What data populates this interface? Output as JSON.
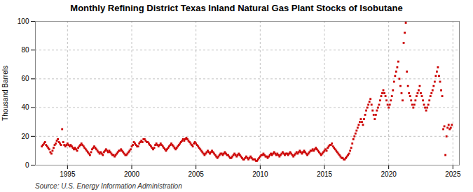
{
  "chart_data": {
    "type": "scatter",
    "title": "Monthly Refining District Texas Inland Natural Gas Plant Stocks of Isobutane",
    "ylabel": "Thousand Barrels",
    "source": "Source: U.S. Energy Information Administration",
    "color": "#cc0000",
    "marker": "square",
    "grid": true,
    "xlim": [
      1992.5,
      2025.5
    ],
    "ylim": [
      0,
      100
    ],
    "xticks": [
      1995,
      2000,
      2005,
      2010,
      2015,
      2020,
      2025
    ],
    "yticks": [
      0,
      20,
      40,
      60,
      80,
      100
    ],
    "x": [
      1993.0,
      1993.083,
      1993.167,
      1993.25,
      1993.333,
      1993.417,
      1993.5,
      1993.583,
      1993.667,
      1993.75,
      1993.833,
      1993.917,
      1994.0,
      1994.083,
      1994.167,
      1994.25,
      1994.333,
      1994.417,
      1994.5,
      1994.583,
      1994.667,
      1994.75,
      1994.833,
      1994.917,
      1995.0,
      1995.083,
      1995.167,
      1995.25,
      1995.333,
      1995.417,
      1995.5,
      1995.583,
      1995.667,
      1995.75,
      1995.833,
      1995.917,
      1996.0,
      1996.083,
      1996.167,
      1996.25,
      1996.333,
      1996.417,
      1996.5,
      1996.583,
      1996.667,
      1996.75,
      1996.833,
      1996.917,
      1997.0,
      1997.083,
      1997.167,
      1997.25,
      1997.333,
      1997.417,
      1997.5,
      1997.583,
      1997.667,
      1997.75,
      1997.833,
      1997.917,
      1998.0,
      1998.083,
      1998.167,
      1998.25,
      1998.333,
      1998.417,
      1998.5,
      1998.583,
      1998.667,
      1998.75,
      1998.833,
      1998.917,
      1999.0,
      1999.083,
      1999.167,
      1999.25,
      1999.333,
      1999.417,
      1999.5,
      1999.583,
      1999.667,
      1999.75,
      1999.833,
      1999.917,
      2000.0,
      2000.083,
      2000.167,
      2000.25,
      2000.333,
      2000.417,
      2000.5,
      2000.583,
      2000.667,
      2000.75,
      2000.833,
      2000.917,
      2001.0,
      2001.083,
      2001.167,
      2001.25,
      2001.333,
      2001.417,
      2001.5,
      2001.583,
      2001.667,
      2001.75,
      2001.833,
      2001.917,
      2002.0,
      2002.083,
      2002.167,
      2002.25,
      2002.333,
      2002.417,
      2002.5,
      2002.583,
      2002.667,
      2002.75,
      2002.833,
      2002.917,
      2003.0,
      2003.083,
      2003.167,
      2003.25,
      2003.333,
      2003.417,
      2003.5,
      2003.583,
      2003.667,
      2003.75,
      2003.833,
      2003.917,
      2004.0,
      2004.083,
      2004.167,
      2004.25,
      2004.333,
      2004.417,
      2004.5,
      2004.583,
      2004.667,
      2004.75,
      2004.833,
      2004.917,
      2005.0,
      2005.083,
      2005.167,
      2005.25,
      2005.333,
      2005.417,
      2005.5,
      2005.583,
      2005.667,
      2005.75,
      2005.833,
      2005.917,
      2006.0,
      2006.083,
      2006.167,
      2006.25,
      2006.333,
      2006.417,
      2006.5,
      2006.583,
      2006.667,
      2006.75,
      2006.833,
      2006.917,
      2007.0,
      2007.083,
      2007.167,
      2007.25,
      2007.333,
      2007.417,
      2007.5,
      2007.583,
      2007.667,
      2007.75,
      2007.833,
      2007.917,
      2008.0,
      2008.083,
      2008.167,
      2008.25,
      2008.333,
      2008.417,
      2008.5,
      2008.583,
      2008.667,
      2008.75,
      2008.833,
      2008.917,
      2009.0,
      2009.083,
      2009.167,
      2009.25,
      2009.333,
      2009.417,
      2009.5,
      2009.583,
      2009.667,
      2009.75,
      2009.833,
      2009.917,
      2010.0,
      2010.083,
      2010.167,
      2010.25,
      2010.333,
      2010.417,
      2010.5,
      2010.583,
      2010.667,
      2010.75,
      2010.833,
      2010.917,
      2011.0,
      2011.083,
      2011.167,
      2011.25,
      2011.333,
      2011.417,
      2011.5,
      2011.583,
      2011.667,
      2011.75,
      2011.833,
      2011.917,
      2012.0,
      2012.083,
      2012.167,
      2012.25,
      2012.333,
      2012.417,
      2012.5,
      2012.583,
      2012.667,
      2012.75,
      2012.833,
      2012.917,
      2013.0,
      2013.083,
      2013.167,
      2013.25,
      2013.333,
      2013.417,
      2013.5,
      2013.583,
      2013.667,
      2013.75,
      2013.833,
      2013.917,
      2014.0,
      2014.083,
      2014.167,
      2014.25,
      2014.333,
      2014.417,
      2014.5,
      2014.583,
      2014.667,
      2014.75,
      2014.833,
      2014.917,
      2015.0,
      2015.083,
      2015.167,
      2015.25,
      2015.333,
      2015.417,
      2015.5,
      2015.583,
      2015.667,
      2015.75,
      2015.833,
      2015.917,
      2016.0,
      2016.083,
      2016.167,
      2016.25,
      2016.333,
      2016.417,
      2016.5,
      2016.583,
      2016.667,
      2016.75,
      2016.833,
      2016.917,
      2017.0,
      2017.083,
      2017.167,
      2017.25,
      2017.333,
      2017.417,
      2017.5,
      2017.583,
      2017.667,
      2017.75,
      2017.833,
      2017.917,
      2018.0,
      2018.083,
      2018.167,
      2018.25,
      2018.333,
      2018.417,
      2018.5,
      2018.583,
      2018.667,
      2018.75,
      2018.833,
      2018.917,
      2019.0,
      2019.083,
      2019.167,
      2019.25,
      2019.333,
      2019.417,
      2019.5,
      2019.583,
      2019.667,
      2019.75,
      2019.833,
      2019.917,
      2020.0,
      2020.083,
      2020.167,
      2020.25,
      2020.333,
      2020.417,
      2020.5,
      2020.583,
      2020.667,
      2020.75,
      2020.833,
      2020.917,
      2021.0,
      2021.083,
      2021.167,
      2021.25,
      2021.333,
      2021.417,
      2021.5,
      2021.583,
      2021.667,
      2021.75,
      2021.833,
      2021.917,
      2022.0,
      2022.083,
      2022.167,
      2022.25,
      2022.333,
      2022.417,
      2022.5,
      2022.583,
      2022.667,
      2022.75,
      2022.833,
      2022.917,
      2023.0,
      2023.083,
      2023.167,
      2023.25,
      2023.333,
      2023.417,
      2023.5,
      2023.583,
      2023.667,
      2023.75,
      2023.833,
      2023.917,
      2024.0,
      2024.083,
      2024.167,
      2024.25,
      2024.333,
      2024.417,
      2024.5,
      2024.583,
      2024.667,
      2024.75,
      2024.833,
      2024.917
    ],
    "values": [
      13,
      14,
      15,
      16,
      14,
      13,
      12,
      11,
      9,
      8,
      10,
      12,
      14,
      15,
      17,
      18,
      16,
      15,
      14,
      25,
      16,
      14,
      13,
      14,
      15,
      14,
      13,
      14,
      13,
      12,
      11,
      12,
      11,
      10,
      12,
      13,
      14,
      15,
      14,
      13,
      12,
      11,
      10,
      9,
      8,
      7,
      9,
      11,
      12,
      13,
      12,
      11,
      10,
      9,
      8,
      9,
      8,
      7,
      9,
      10,
      11,
      10,
      9,
      10,
      9,
      8,
      7,
      7,
      6,
      7,
      8,
      9,
      10,
      10,
      11,
      10,
      9,
      8,
      7,
      7,
      8,
      9,
      10,
      11,
      13,
      14,
      16,
      15,
      14,
      13,
      13,
      15,
      16,
      17,
      16,
      18,
      18,
      17,
      16,
      16,
      15,
      14,
      13,
      12,
      11,
      12,
      14,
      15,
      14,
      13,
      14,
      15,
      14,
      13,
      12,
      11,
      10,
      11,
      12,
      13,
      14,
      15,
      14,
      13,
      12,
      11,
      12,
      13,
      14,
      15,
      16,
      17,
      18,
      17,
      18,
      19,
      18,
      17,
      16,
      15,
      14,
      13,
      15,
      16,
      15,
      14,
      13,
      12,
      11,
      10,
      9,
      8,
      7,
      8,
      9,
      10,
      9,
      8,
      9,
      10,
      9,
      8,
      7,
      6,
      5,
      6,
      7,
      8,
      8,
      7,
      8,
      9,
      8,
      7,
      7,
      6,
      5,
      5,
      6,
      7,
      8,
      7,
      6,
      7,
      8,
      7,
      6,
      5,
      4,
      4,
      5,
      6,
      5,
      4,
      5,
      6,
      5,
      4,
      4,
      4,
      3,
      3,
      4,
      5,
      6,
      7,
      7,
      8,
      7,
      6,
      6,
      5,
      6,
      7,
      8,
      7,
      8,
      9,
      8,
      7,
      8,
      7,
      6,
      7,
      8,
      9,
      8,
      7,
      8,
      8,
      7,
      8,
      9,
      8,
      7,
      6,
      7,
      8,
      9,
      8,
      9,
      10,
      9,
      8,
      9,
      10,
      9,
      8,
      7,
      8,
      9,
      10,
      10,
      11,
      10,
      11,
      12,
      11,
      10,
      9,
      8,
      7,
      8,
      9,
      10,
      11,
      10,
      12,
      13,
      14,
      14,
      15,
      13,
      12,
      11,
      10,
      9,
      8,
      7,
      6,
      5,
      5,
      4,
      4,
      5,
      6,
      7,
      8,
      10,
      12,
      15,
      18,
      20,
      22,
      24,
      26,
      28,
      30,
      32,
      30,
      28,
      32,
      35,
      38,
      40,
      42,
      44,
      46,
      42,
      38,
      35,
      32,
      35,
      38,
      40,
      42,
      45,
      48,
      50,
      52,
      50,
      48,
      45,
      42,
      40,
      42,
      45,
      48,
      52,
      58,
      62,
      65,
      68,
      72,
      60,
      55,
      50,
      45,
      85,
      92,
      99,
      65,
      55,
      50,
      48,
      45,
      42,
      40,
      42,
      45,
      48,
      50,
      52,
      55,
      50,
      48,
      45,
      42,
      40,
      38,
      40,
      42,
      45,
      48,
      50,
      52,
      55,
      58,
      62,
      65,
      68,
      62,
      58,
      52,
      48,
      25,
      27,
      7,
      20,
      26,
      28,
      25,
      26,
      28
    ]
  }
}
